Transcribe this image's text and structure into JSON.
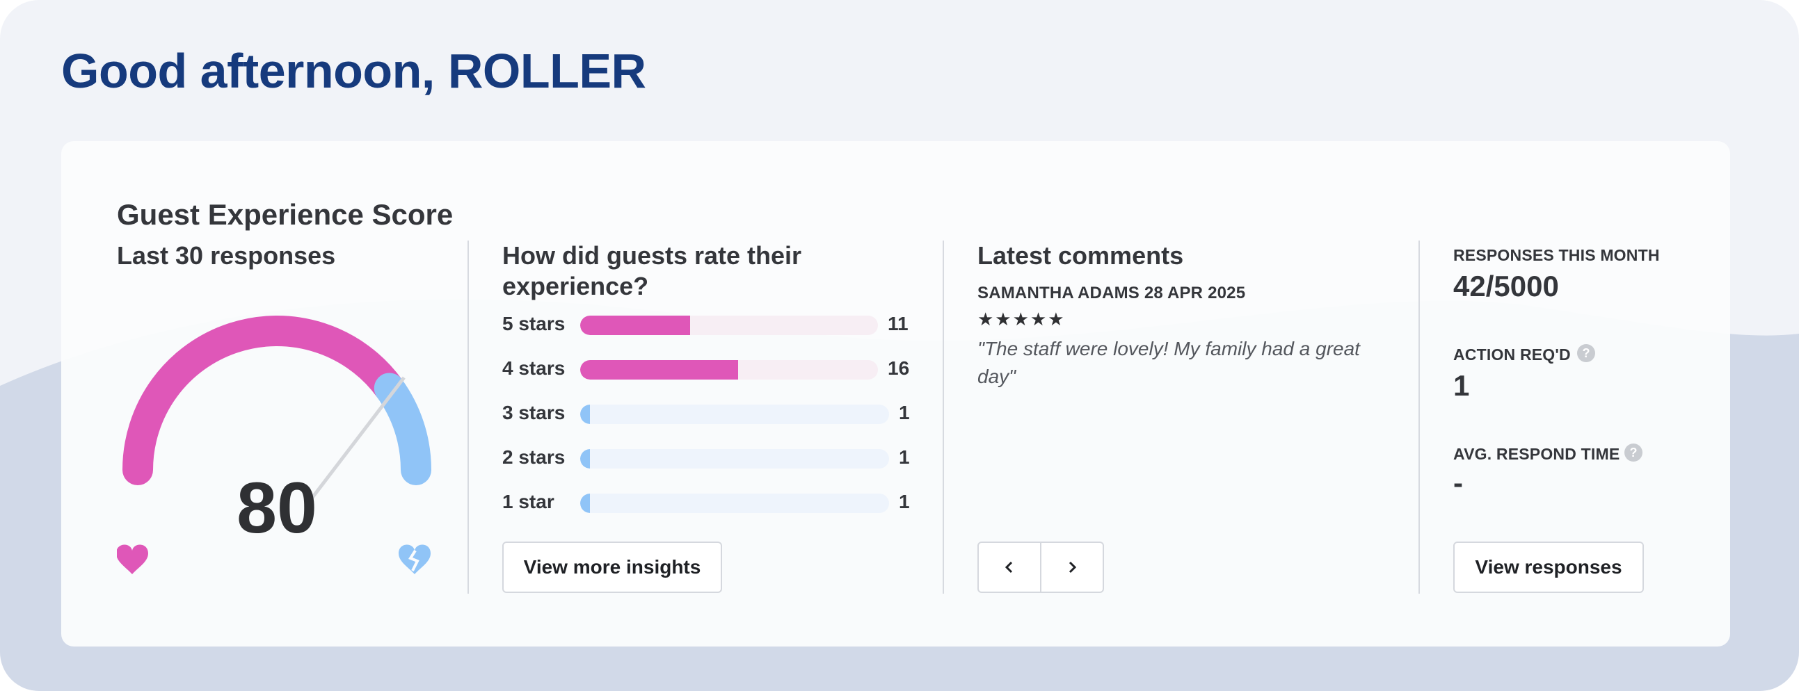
{
  "greeting": "Good afternoon, ROLLER",
  "colors": {
    "title_blue": "#163a7d",
    "positive_pink": "#df57b8",
    "negative_blue": "#90c4f7",
    "track_pink": "#f7eef4",
    "track_blue": "#eef4fc"
  },
  "card": {
    "title": "Guest Experience Score",
    "gauge": {
      "subtitle": "Last 30 responses",
      "score": "80",
      "score_fraction": 0.8,
      "positive_icon": "heart-icon",
      "negative_icon": "broken-heart-icon"
    },
    "ratings": {
      "title": "How did guests rate their experience?",
      "rows": [
        {
          "label": "5 stars",
          "count": "11",
          "fraction": 0.37,
          "tone": "pink"
        },
        {
          "label": "4 stars",
          "count": "16",
          "fraction": 0.53,
          "tone": "pink"
        },
        {
          "label": "3 stars",
          "count": "1",
          "fraction": 0.03,
          "tone": "blue"
        },
        {
          "label": "2 stars",
          "count": "1",
          "fraction": 0.03,
          "tone": "blue"
        },
        {
          "label": "1 star",
          "count": "1",
          "fraction": 0.03,
          "tone": "blue"
        }
      ],
      "button_label": "View more insights"
    },
    "comments": {
      "title": "Latest comments",
      "author_date": "SAMANTHA ADAMS 28 APR 2025",
      "stars": "★★★★★",
      "star_rating": 5,
      "text": "\"The staff were lovely! My family had a great day\"",
      "prev_icon": "chevron-left-icon",
      "next_icon": "chevron-right-icon"
    },
    "stats": {
      "responses_label": "RESPONSES THIS MONTH",
      "responses_value": "42/5000",
      "action_label": "ACTION REQ'D",
      "action_value": "1",
      "avg_label": "AVG. RESPOND TIME",
      "avg_value": "-",
      "help_glyph": "?",
      "button_label": "View responses"
    }
  }
}
